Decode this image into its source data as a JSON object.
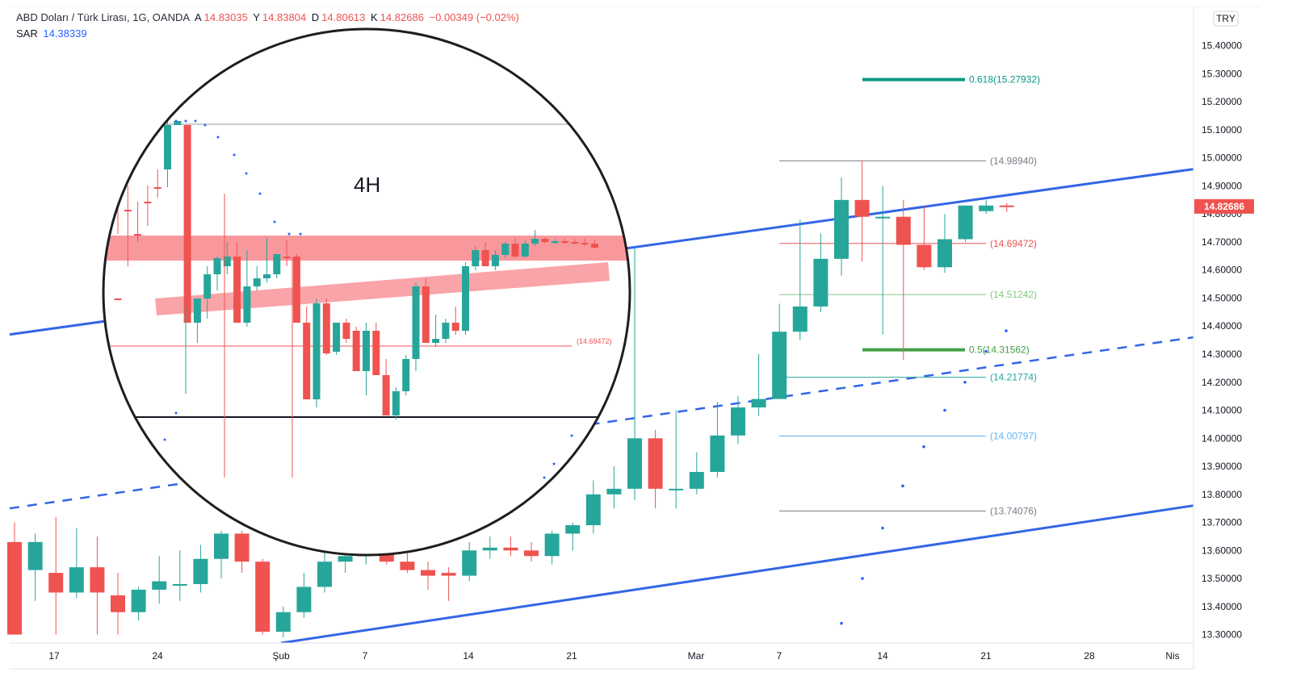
{
  "legend": {
    "symbol": "ABD Doları / Türk Lirası, 1G, OANDA",
    "open_label": "A",
    "open": "14.83035",
    "high_label": "Y",
    "high": "14.83804",
    "low_label": "D",
    "low": "14.80613",
    "close_label": "K",
    "close": "14.82686",
    "change": "−0.00349 (−0.02%)",
    "sar_label": "SAR",
    "sar_value": "14.38339"
  },
  "currency_badge": "TRY",
  "price_badge": "14.82686",
  "inset_label": "4H",
  "inset_level_label": "(14.69472)",
  "colors": {
    "up": "#26a69a",
    "down": "#ef5350",
    "trend": "#3366e6",
    "zone": "#f7868c"
  },
  "chart_data": {
    "type": "candlestick",
    "x_tick_labels": [
      "17",
      "24",
      "Şub",
      "7",
      "14",
      "21",
      "Mar",
      "7",
      "14",
      "21",
      "28",
      "Nis"
    ],
    "y_ticks": [
      "13.30000",
      "13.40000",
      "13.50000",
      "13.60000",
      "13.70000",
      "13.80000",
      "13.90000",
      "14.00000",
      "14.10000",
      "14.20000",
      "14.30000",
      "14.40000",
      "14.50000",
      "14.60000",
      "14.70000",
      "14.80000",
      "14.90000",
      "15.00000",
      "15.10000",
      "15.20000",
      "15.30000",
      "15.40000"
    ],
    "ylim": [
      13.27,
      15.54
    ],
    "candles": [
      {
        "o": 13.63,
        "h": 13.7,
        "l": 13.3,
        "c": 13.3
      },
      {
        "o": 13.53,
        "h": 13.66,
        "l": 13.42,
        "c": 13.63
      },
      {
        "o": 13.52,
        "h": 13.72,
        "l": 13.3,
        "c": 13.45
      },
      {
        "o": 13.45,
        "h": 13.68,
        "l": 13.43,
        "c": 13.54
      },
      {
        "o": 13.54,
        "h": 13.65,
        "l": 13.3,
        "c": 13.45
      },
      {
        "o": 13.44,
        "h": 13.52,
        "l": 13.3,
        "c": 13.38
      },
      {
        "o": 13.38,
        "h": 13.47,
        "l": 13.35,
        "c": 13.46
      },
      {
        "o": 13.46,
        "h": 13.58,
        "l": 13.41,
        "c": 13.49
      },
      {
        "o": 13.48,
        "h": 13.6,
        "l": 13.42,
        "c": 13.48
      },
      {
        "o": 13.48,
        "h": 13.62,
        "l": 13.45,
        "c": 13.57
      },
      {
        "o": 13.57,
        "h": 13.67,
        "l": 13.5,
        "c": 13.66
      },
      {
        "o": 13.66,
        "h": 13.67,
        "l": 13.52,
        "c": 13.56
      },
      {
        "o": 13.56,
        "h": 13.57,
        "l": 13.3,
        "c": 13.31
      },
      {
        "o": 13.31,
        "h": 13.4,
        "l": 13.29,
        "c": 13.38
      },
      {
        "o": 13.38,
        "h": 13.52,
        "l": 13.36,
        "c": 13.47
      },
      {
        "o": 13.47,
        "h": 13.62,
        "l": 13.45,
        "c": 13.56
      },
      {
        "o": 13.56,
        "h": 13.63,
        "l": 13.52,
        "c": 13.58
      },
      {
        "o": 13.58,
        "h": 13.62,
        "l": 13.55,
        "c": 13.59
      },
      {
        "o": 13.59,
        "h": 13.62,
        "l": 13.55,
        "c": 13.56
      },
      {
        "o": 13.56,
        "h": 13.6,
        "l": 13.52,
        "c": 13.53
      },
      {
        "o": 13.53,
        "h": 13.56,
        "l": 13.46,
        "c": 13.51
      },
      {
        "o": 13.52,
        "h": 13.54,
        "l": 13.42,
        "c": 13.51
      },
      {
        "o": 13.51,
        "h": 13.63,
        "l": 13.49,
        "c": 13.6
      },
      {
        "o": 13.6,
        "h": 13.65,
        "l": 13.57,
        "c": 13.61
      },
      {
        "o": 13.61,
        "h": 13.65,
        "l": 13.58,
        "c": 13.6
      },
      {
        "o": 13.6,
        "h": 13.63,
        "l": 13.56,
        "c": 13.58
      },
      {
        "o": 13.58,
        "h": 13.67,
        "l": 13.55,
        "c": 13.66
      },
      {
        "o": 13.66,
        "h": 13.7,
        "l": 13.6,
        "c": 13.69
      },
      {
        "o": 13.69,
        "h": 13.85,
        "l": 13.66,
        "c": 13.8
      },
      {
        "o": 13.8,
        "h": 13.9,
        "l": 13.75,
        "c": 13.82
      },
      {
        "o": 13.82,
        "h": 14.68,
        "l": 13.78,
        "c": 14.0
      },
      {
        "o": 14.0,
        "h": 14.03,
        "l": 13.75,
        "c": 13.82
      },
      {
        "o": 13.82,
        "h": 14.1,
        "l": 13.75,
        "c": 13.82
      },
      {
        "o": 13.82,
        "h": 13.95,
        "l": 13.8,
        "c": 13.88
      },
      {
        "o": 13.88,
        "h": 14.13,
        "l": 13.86,
        "c": 14.01
      },
      {
        "o": 14.01,
        "h": 14.15,
        "l": 13.98,
        "c": 14.11
      },
      {
        "o": 14.11,
        "h": 14.3,
        "l": 14.08,
        "c": 14.14
      },
      {
        "o": 14.14,
        "h": 14.48,
        "l": 14.14,
        "c": 14.38
      },
      {
        "o": 14.38,
        "h": 14.78,
        "l": 14.35,
        "c": 14.47
      },
      {
        "o": 14.47,
        "h": 14.73,
        "l": 14.45,
        "c": 14.64
      },
      {
        "o": 14.64,
        "h": 14.93,
        "l": 14.58,
        "c": 14.85
      },
      {
        "o": 14.85,
        "h": 14.99,
        "l": 14.63,
        "c": 14.79
      },
      {
        "o": 14.79,
        "h": 14.9,
        "l": 14.37,
        "c": 14.79
      },
      {
        "o": 14.79,
        "h": 14.85,
        "l": 14.28,
        "c": 14.69
      },
      {
        "o": 14.69,
        "h": 14.83,
        "l": 14.6,
        "c": 14.61
      },
      {
        "o": 14.61,
        "h": 14.8,
        "l": 14.59,
        "c": 14.71
      },
      {
        "o": 14.71,
        "h": 14.83,
        "l": 14.7,
        "c": 14.83
      },
      {
        "o": 14.81,
        "h": 14.85,
        "l": 14.8,
        "c": 14.83
      },
      {
        "o": 14.83035,
        "h": 14.83804,
        "l": 14.80613,
        "c": 14.82686
      }
    ],
    "fib_levels": [
      {
        "label": "0.618(15.27932)",
        "value": 15.27932,
        "color": "#089981",
        "bold": true
      },
      {
        "label": "(14.98940)",
        "value": 14.9894,
        "color": "#787b86"
      },
      {
        "label": "(14.69472)",
        "value": 14.69472,
        "color": "#ef5350"
      },
      {
        "label": "(14.51242)",
        "value": 14.51242,
        "color": "#81c784"
      },
      {
        "label": "0.5(14.31562)",
        "value": 14.31562,
        "color": "#43a047",
        "bold": true
      },
      {
        "label": "(14.21774)",
        "value": 14.21774,
        "color": "#26a69a"
      },
      {
        "label": "(14.00797)",
        "value": 14.00797,
        "color": "#64b5f6"
      },
      {
        "label": "(13.74076)",
        "value": 13.74076,
        "color": "#787b86"
      }
    ],
    "sar": [
      14.38339,
      14.31,
      14.2,
      14.1,
      13.97,
      13.83,
      13.68,
      13.5,
      13.34
    ]
  }
}
